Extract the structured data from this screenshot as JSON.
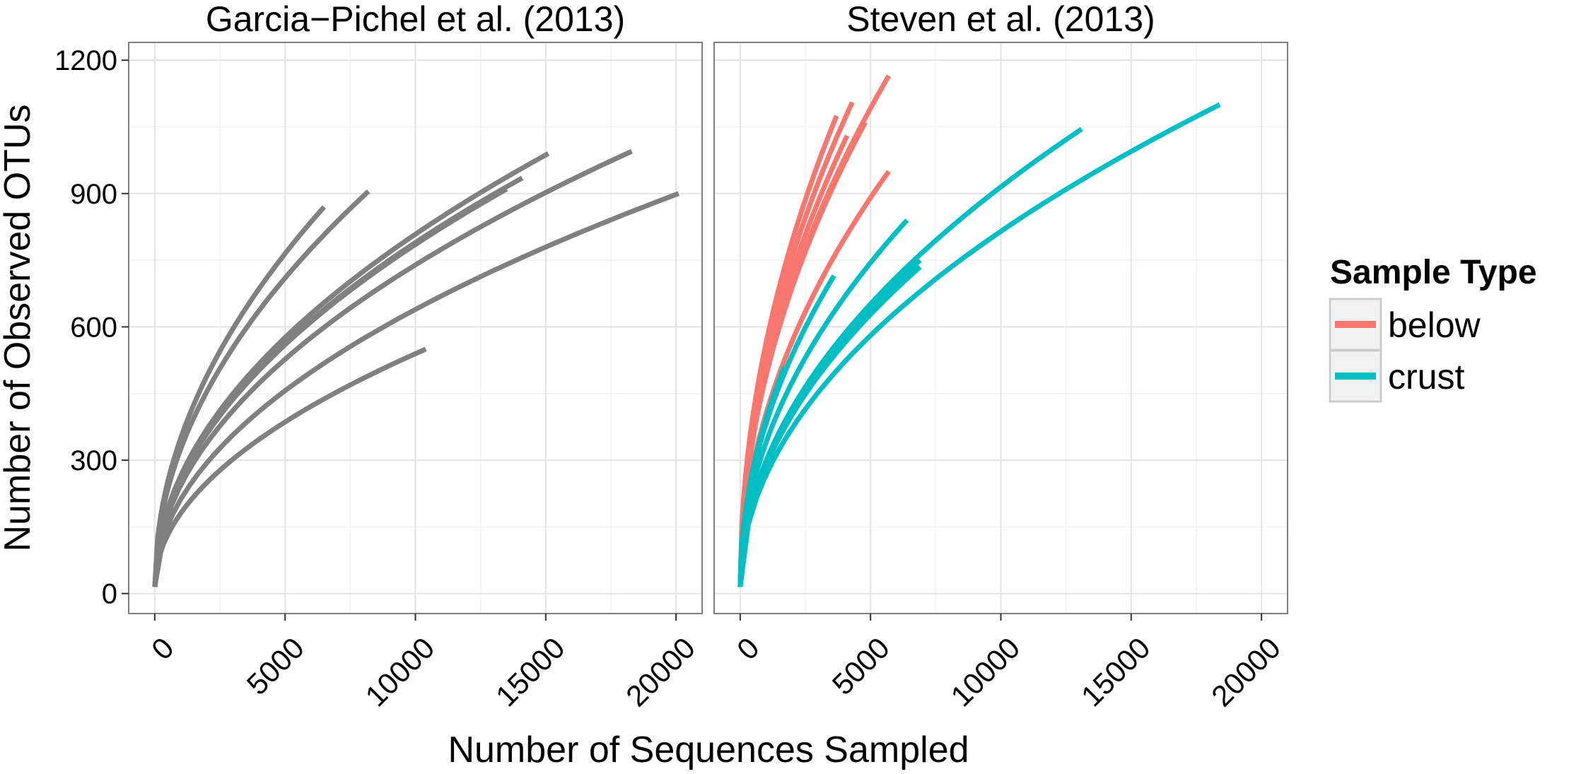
{
  "chart_data": {
    "type": "line",
    "ylabel": "Number of Observed OTUs",
    "xlabel": "Number of Sequences Sampled",
    "xlim": [
      -1000,
      21000
    ],
    "ylim": [
      -45,
      1240
    ],
    "x_ticks": [
      0,
      5000,
      10000,
      15000,
      20000
    ],
    "x_tick_labels": [
      "0",
      "5000",
      "10000",
      "15000",
      "20000"
    ],
    "y_ticks": [
      0,
      300,
      600,
      900,
      1200
    ],
    "y_tick_labels": [
      "0",
      "300",
      "600",
      "900",
      "1200"
    ],
    "grid": true,
    "legend": {
      "title": "Sample Type",
      "placement": "right",
      "entries": [
        {
          "label": "below",
          "color": "#F8766D"
        },
        {
          "label": "crust",
          "color": "#00BFC4"
        }
      ]
    },
    "panels": [
      {
        "title": "Garcia−Pichel et al. (2013)",
        "series": [
          {
            "color": "#808080",
            "x_start": 0,
            "x_end": 6500,
            "y_start": 15,
            "y_end": 870
          },
          {
            "color": "#808080",
            "x_start": 0,
            "x_end": 8200,
            "y_start": 15,
            "y_end": 905
          },
          {
            "color": "#808080",
            "x_start": 0,
            "x_end": 15100,
            "y_start": 15,
            "y_end": 990
          },
          {
            "color": "#808080",
            "x_start": 0,
            "x_end": 14100,
            "y_start": 15,
            "y_end": 935
          },
          {
            "color": "#808080",
            "x_start": 0,
            "x_end": 13500,
            "y_start": 15,
            "y_end": 910
          },
          {
            "color": "#808080",
            "x_start": 0,
            "x_end": 18300,
            "y_start": 15,
            "y_end": 995
          },
          {
            "color": "#808080",
            "x_start": 0,
            "x_end": 20100,
            "y_start": 15,
            "y_end": 900
          },
          {
            "color": "#808080",
            "x_start": 0,
            "x_end": 10400,
            "y_start": 15,
            "y_end": 550
          }
        ]
      },
      {
        "title": "Steven et al. (2013)",
        "series": [
          {
            "group": "below",
            "color": "#F8766D",
            "x_start": 0,
            "x_end": 3700,
            "y_start": 15,
            "y_end": 1075
          },
          {
            "group": "below",
            "color": "#F8766D",
            "x_start": 0,
            "x_end": 4300,
            "y_start": 15,
            "y_end": 1105
          },
          {
            "group": "below",
            "color": "#F8766D",
            "x_start": 0,
            "x_end": 5700,
            "y_start": 15,
            "y_end": 1165
          },
          {
            "group": "below",
            "color": "#F8766D",
            "x_start": 0,
            "x_end": 4100,
            "y_start": 15,
            "y_end": 1030
          },
          {
            "group": "below",
            "color": "#F8766D",
            "x_start": 0,
            "x_end": 4800,
            "y_start": 15,
            "y_end": 1060
          },
          {
            "group": "below",
            "color": "#F8766D",
            "x_start": 0,
            "x_end": 5700,
            "y_start": 15,
            "y_end": 950
          },
          {
            "group": "crust",
            "color": "#00BFC4",
            "x_start": 0,
            "x_end": 18400,
            "y_start": 15,
            "y_end": 1100
          },
          {
            "group": "crust",
            "color": "#00BFC4",
            "x_start": 0,
            "x_end": 13100,
            "y_start": 15,
            "y_end": 1045
          },
          {
            "group": "crust",
            "color": "#00BFC4",
            "x_start": 0,
            "x_end": 6400,
            "y_start": 15,
            "y_end": 840
          },
          {
            "group": "crust",
            "color": "#00BFC4",
            "x_start": 0,
            "x_end": 6900,
            "y_start": 15,
            "y_end": 750
          },
          {
            "group": "crust",
            "color": "#00BFC4",
            "x_start": 0,
            "x_end": 6900,
            "y_start": 15,
            "y_end": 735
          },
          {
            "group": "crust",
            "color": "#00BFC4",
            "x_start": 0,
            "x_end": 3600,
            "y_start": 15,
            "y_end": 715
          },
          {
            "group": "crust",
            "color": "#00BFC4",
            "x_start": 0,
            "x_end": 1700,
            "y_start": 15,
            "y_end": 510
          }
        ]
      }
    ]
  }
}
